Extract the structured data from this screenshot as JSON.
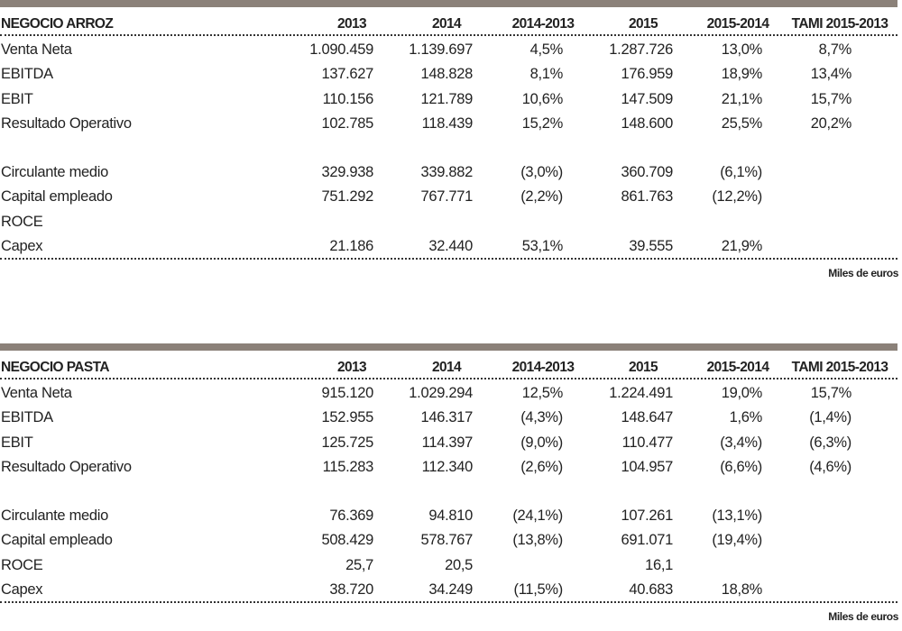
{
  "tables": [
    {
      "title": "NEGOCIO ARROZ",
      "columns": [
        "2013",
        "2014",
        "2014-2013",
        "2015",
        "2015-2014",
        "TAMI 2015-2013"
      ],
      "groups": [
        {
          "rows": [
            {
              "label": "Venta Neta",
              "values": [
                "1.090.459",
                "1.139.697",
                "4,5%",
                "1.287.726",
                "13,0%",
                "8,7%"
              ]
            },
            {
              "label": "EBITDA",
              "values": [
                "137.627",
                "148.828",
                "8,1%",
                "176.959",
                "18,9%",
                "13,4%"
              ]
            },
            {
              "label": "EBIT",
              "values": [
                "110.156",
                "121.789",
                "10,6%",
                "147.509",
                "21,1%",
                "15,7%"
              ]
            },
            {
              "label": "Resultado Operativo",
              "values": [
                "102.785",
                "118.439",
                "15,2%",
                "148.600",
                "25,5%",
                "20,2%"
              ]
            }
          ]
        },
        {
          "rows": [
            {
              "label": "Circulante medio",
              "values": [
                "329.938",
                "339.882",
                "(3,0%)",
                "360.709",
                "(6,1%)",
                null
              ]
            },
            {
              "label": "Capital empleado",
              "values": [
                "751.292",
                "767.771",
                "(2,2%)",
                "861.763",
                "(12,2%)",
                null
              ]
            },
            {
              "label": "ROCE",
              "values": [
                null,
                null,
                null,
                null,
                null,
                null
              ]
            },
            {
              "label": "Capex",
              "values": [
                "21.186",
                "32.440",
                "53,1%",
                "39.555",
                "21,9%",
                null
              ]
            }
          ]
        }
      ],
      "note": "Miles de euros"
    },
    {
      "title": "NEGOCIO PASTA",
      "columns": [
        "2013",
        "2014",
        "2014-2013",
        "2015",
        "2015-2014",
        "TAMI 2015-2013"
      ],
      "groups": [
        {
          "rows": [
            {
              "label": "Venta Neta",
              "values": [
                "915.120",
                "1.029.294",
                "12,5%",
                "1.224.491",
                "19,0%",
                "15,7%"
              ]
            },
            {
              "label": "EBITDA",
              "values": [
                "152.955",
                "146.317",
                "(4,3%)",
                "148.647",
                "1,6%",
                "(1,4%)"
              ]
            },
            {
              "label": "EBIT",
              "values": [
                "125.725",
                "114.397",
                "(9,0%)",
                "110.477",
                "(3,4%)",
                "(6,3%)"
              ]
            },
            {
              "label": "Resultado Operativo",
              "values": [
                "115.283",
                "112.340",
                "(2,6%)",
                "104.957",
                "(6,6%)",
                "(4,6%)"
              ]
            }
          ]
        },
        {
          "rows": [
            {
              "label": "Circulante medio",
              "values": [
                "76.369",
                "94.810",
                "(24,1%)",
                "107.261",
                "(13,1%)",
                null
              ]
            },
            {
              "label": "Capital empleado",
              "values": [
                "508.429",
                "578.767",
                "(13,8%)",
                "691.071",
                "(19,4%)",
                null
              ]
            },
            {
              "label": "ROCE",
              "values": [
                "25,7",
                "20,5",
                null,
                "16,1",
                null,
                null
              ]
            },
            {
              "label": "Capex",
              "values": [
                "38.720",
                "34.249",
                "(11,5%)",
                "40.683",
                "18,8%",
                null
              ]
            }
          ]
        }
      ],
      "note": "Miles de euros"
    }
  ]
}
